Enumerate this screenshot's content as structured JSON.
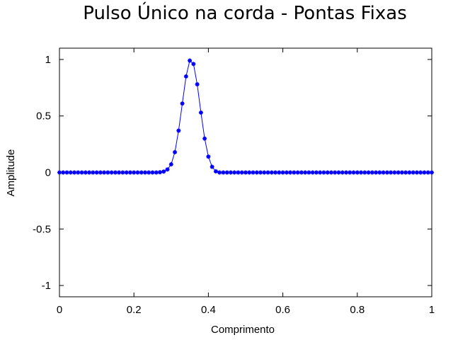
{
  "chart_data": {
    "type": "line",
    "title": "Pulso Único na corda - Pontas Fixas",
    "xlabel": "Comprimento",
    "ylabel": "Amplitude",
    "xlim": [
      0,
      1
    ],
    "ylim": [
      -1.1,
      1.1
    ],
    "xticks": [
      0,
      0.2,
      0.4,
      0.6,
      0.8,
      1
    ],
    "xtick_labels": [
      "0",
      "0.2",
      "0.4",
      "0.6",
      "0.8",
      "1"
    ],
    "yticks": [
      -1,
      -0.5,
      0,
      0.5,
      1
    ],
    "ytick_labels": [
      "-1",
      "-0.5",
      "0",
      "0.5",
      "1"
    ],
    "grid": false,
    "legend": "none",
    "series": [
      {
        "color": "#0000ff",
        "marker": "star",
        "x": [
          0.0,
          0.01,
          0.02,
          0.03,
          0.04,
          0.05,
          0.06,
          0.07,
          0.08,
          0.09,
          0.1,
          0.11,
          0.12,
          0.13,
          0.14,
          0.15,
          0.16,
          0.17,
          0.18,
          0.19,
          0.2,
          0.21,
          0.22,
          0.23,
          0.24,
          0.25,
          0.26,
          0.27,
          0.28,
          0.29,
          0.3,
          0.31,
          0.32,
          0.33,
          0.34,
          0.35,
          0.36,
          0.37,
          0.38,
          0.39,
          0.4,
          0.41,
          0.42,
          0.43,
          0.44,
          0.45,
          0.46,
          0.47,
          0.48,
          0.49,
          0.5,
          0.51,
          0.52,
          0.53,
          0.54,
          0.55,
          0.56,
          0.57,
          0.58,
          0.59,
          0.6,
          0.61,
          0.62,
          0.63,
          0.64,
          0.65,
          0.66,
          0.67,
          0.68,
          0.69,
          0.7,
          0.71,
          0.72,
          0.73,
          0.74,
          0.75,
          0.76,
          0.77,
          0.78,
          0.79,
          0.8,
          0.81,
          0.82,
          0.83,
          0.84,
          0.85,
          0.86,
          0.87,
          0.88,
          0.89,
          0.9,
          0.91,
          0.92,
          0.93,
          0.94,
          0.95,
          0.96,
          0.97,
          0.98,
          0.99,
          1.0
        ],
        "y": [
          0,
          0,
          0,
          0,
          0,
          0,
          0,
          0,
          0,
          0,
          0,
          0,
          0,
          0,
          0,
          0,
          0,
          0,
          0,
          0,
          0,
          0,
          0,
          0,
          0,
          0,
          0,
          0.002,
          0.008,
          0.027,
          0.072,
          0.18,
          0.37,
          0.61,
          0.85,
          0.99,
          0.96,
          0.78,
          0.53,
          0.3,
          0.14,
          0.05,
          0.01,
          0,
          0,
          0,
          0,
          0,
          0,
          0,
          0,
          0,
          0,
          0,
          0,
          0,
          0,
          0,
          0,
          0,
          0,
          0,
          0,
          0,
          0,
          0,
          0,
          0,
          0,
          0,
          0,
          0,
          0,
          0,
          0,
          0,
          0,
          0,
          0,
          0,
          0,
          0,
          0,
          0,
          0,
          0,
          0,
          0,
          0,
          0,
          0,
          0,
          0,
          0,
          0,
          0,
          0,
          0,
          0,
          0,
          0
        ]
      }
    ]
  }
}
